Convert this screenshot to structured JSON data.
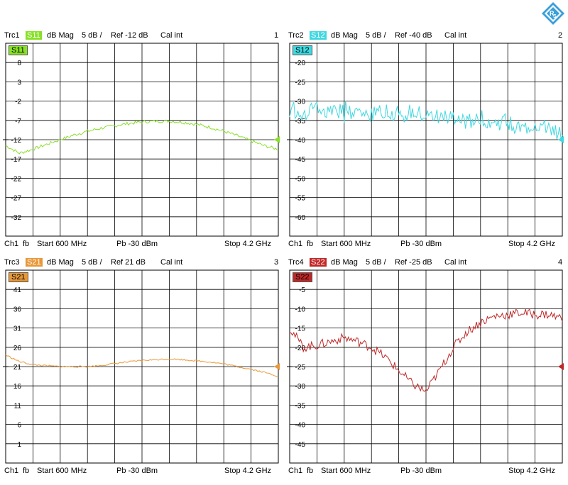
{
  "panels": [
    {
      "trace": "Trc1",
      "param": "S11",
      "format": "dB Mag",
      "scale": "5 dB /",
      "ref": "Ref -12 dB",
      "cal": "Cal int",
      "num": "1",
      "footer": {
        "ch": "Ch1",
        "fb": "fb",
        "start": "Start  600 MHz",
        "pb": "Pb  -30 dBm",
        "stop": "Stop  4.2 GHz"
      }
    },
    {
      "trace": "Trc2",
      "param": "S12",
      "format": "dB Mag",
      "scale": "5 dB /",
      "ref": "Ref -40 dB",
      "cal": "Cal int",
      "num": "2",
      "footer": {
        "ch": "Ch1",
        "fb": "fb",
        "start": "Start  600 MHz",
        "pb": "Pb  -30 dBm",
        "stop": "Stop  4.2 GHz"
      }
    },
    {
      "trace": "Trc3",
      "param": "S21",
      "format": "dB Mag",
      "scale": "5 dB /",
      "ref": "Ref 21 dB",
      "cal": "Cal int",
      "num": "3",
      "footer": {
        "ch": "Ch1",
        "fb": "fb",
        "start": "Start  600 MHz",
        "pb": "Pb  -30 dBm",
        "stop": "Stop  4.2 GHz"
      }
    },
    {
      "trace": "Trc4",
      "param": "S22",
      "format": "dB Mag",
      "scale": "5 dB /",
      "ref": "Ref -25 dB",
      "cal": "Cal int",
      "num": "4",
      "footer": {
        "ch": "Ch1",
        "fb": "fb",
        "start": "Start  600 MHz",
        "pb": "Pb  -30 dBm",
        "stop": "Stop  4.2 GHz"
      }
    }
  ],
  "chart_data": [
    {
      "type": "line",
      "series_name": "S11",
      "color": "#88e028",
      "xlim": [
        0.6,
        4.2
      ],
      "x_unit": "GHz",
      "ylim": [
        -37,
        13
      ],
      "ref_level": -12,
      "yticks": [
        8,
        3,
        -2,
        -7,
        -12,
        -17,
        -22,
        -27,
        -32
      ],
      "x": [
        0.6,
        0.78,
        0.96,
        1.14,
        1.32,
        1.5,
        1.68,
        1.86,
        2.04,
        2.22,
        2.4,
        2.58,
        2.76,
        2.94,
        3.12,
        3.3,
        3.48,
        3.66,
        3.84,
        4.02,
        4.2
      ],
      "y": [
        -13.5,
        -15.5,
        -14.5,
        -13.2,
        -12,
        -10.8,
        -9.8,
        -9,
        -8.4,
        -7.8,
        -7.4,
        -7.2,
        -7.2,
        -7.5,
        -8,
        -8.8,
        -9.8,
        -11,
        -12.3,
        -13.6,
        -14.5
      ],
      "grid": true
    },
    {
      "type": "line",
      "series_name": "S12",
      "color": "#40d8e0",
      "xlim": [
        0.6,
        4.2
      ],
      "x_unit": "GHz",
      "ylim": [
        -65,
        -15
      ],
      "ref_level": -40,
      "yticks": [
        -20,
        -25,
        -30,
        -35,
        -40,
        -45,
        -50,
        -55,
        -60
      ],
      "x": [
        0.6,
        0.78,
        0.96,
        1.14,
        1.32,
        1.5,
        1.68,
        1.86,
        2.04,
        2.22,
        2.4,
        2.58,
        2.76,
        2.94,
        3.12,
        3.3,
        3.48,
        3.66,
        3.84,
        4.02,
        4.2
      ],
      "y": [
        -32,
        -33,
        -31.5,
        -33.5,
        -32,
        -33,
        -34,
        -32,
        -33.5,
        -33,
        -34,
        -34,
        -35,
        -35.5,
        -34,
        -36,
        -35,
        -37.5,
        -36,
        -37,
        -39
      ],
      "grid": true
    },
    {
      "type": "line",
      "series_name": "S21",
      "color": "#e89838",
      "xlim": [
        0.6,
        4.2
      ],
      "x_unit": "GHz",
      "ylim": [
        -4,
        46
      ],
      "ref_level": 21,
      "yticks": [
        41,
        36,
        31,
        26,
        21,
        16,
        11,
        6,
        1
      ],
      "x": [
        0.6,
        0.78,
        0.96,
        1.14,
        1.32,
        1.5,
        1.68,
        1.86,
        2.04,
        2.22,
        2.4,
        2.58,
        2.76,
        2.94,
        3.12,
        3.3,
        3.48,
        3.66,
        3.84,
        4.02,
        4.2
      ],
      "y": [
        24,
        22.3,
        21.5,
        21.2,
        21,
        21,
        21,
        21.3,
        21.8,
        22.2,
        22.6,
        22.8,
        23,
        22.8,
        22.5,
        22.2,
        21.7,
        21,
        20.3,
        19.5,
        18.5
      ],
      "grid": true
    },
    {
      "type": "line",
      "series_name": "S22",
      "color": "#c02828",
      "xlim": [
        0.6,
        4.2
      ],
      "x_unit": "GHz",
      "ylim": [
        -50,
        0
      ],
      "ref_level": -25,
      "yticks": [
        -5,
        -10,
        -15,
        -20,
        -25,
        -30,
        -35,
        -40,
        -45
      ],
      "x": [
        0.6,
        0.78,
        0.96,
        1.14,
        1.32,
        1.5,
        1.68,
        1.86,
        2.04,
        2.22,
        2.4,
        2.58,
        2.76,
        2.94,
        3.12,
        3.3,
        3.48,
        3.66,
        3.84,
        4.02,
        4.2
      ],
      "y": [
        -15,
        -20,
        -19.5,
        -18.5,
        -17.5,
        -18.5,
        -20,
        -22.5,
        -26,
        -29.5,
        -31.5,
        -26,
        -20,
        -16,
        -13.5,
        -12,
        -11.5,
        -11,
        -11.5,
        -11.5,
        -12.5
      ],
      "grid": true
    }
  ]
}
